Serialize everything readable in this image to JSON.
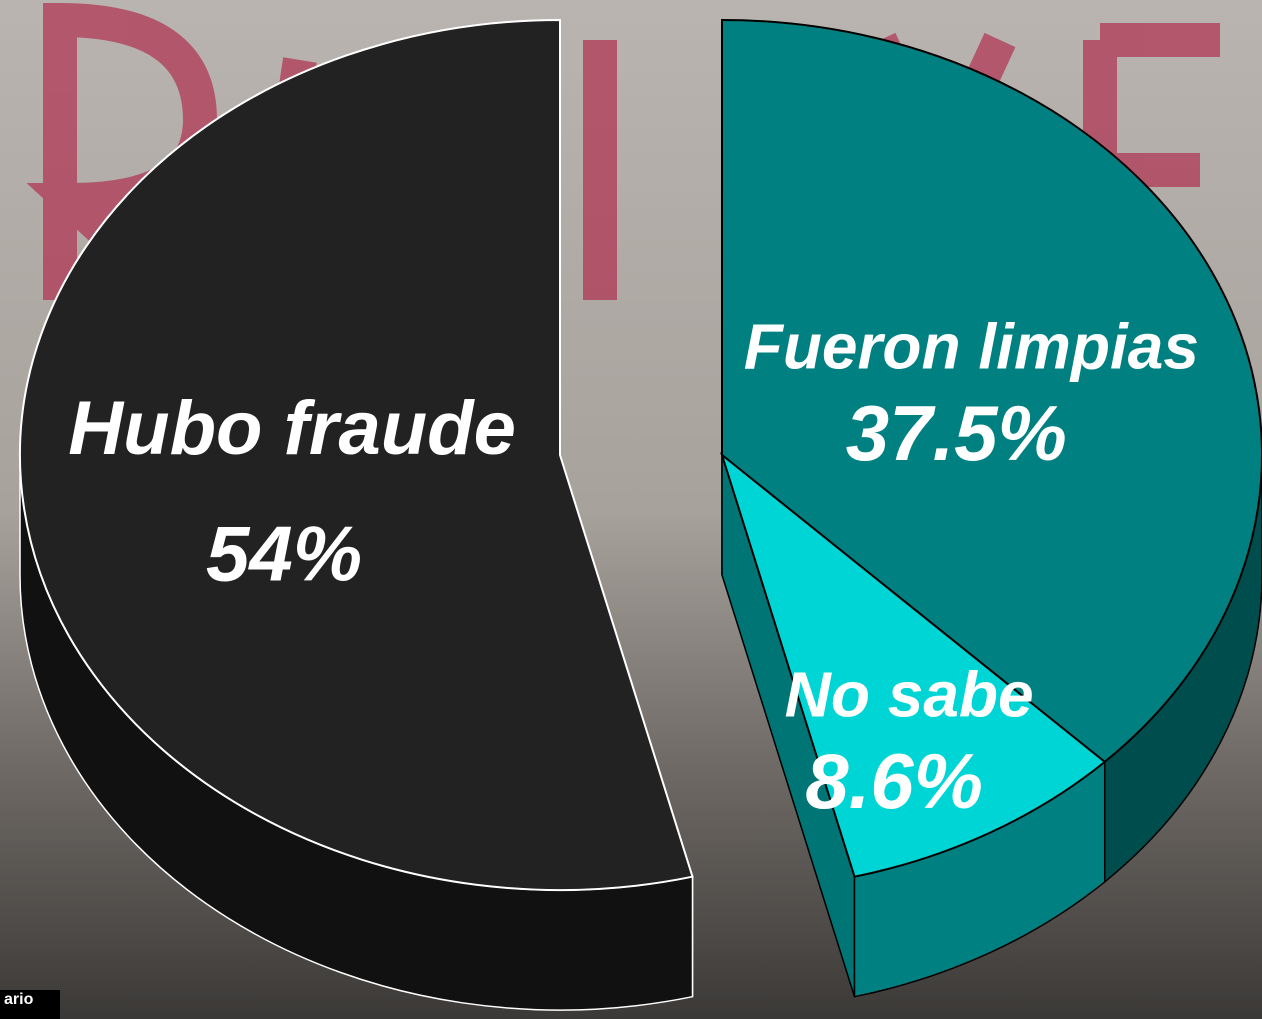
{
  "chart_data": {
    "type": "pie",
    "categories": [
      "Hubo fraude",
      "Fueron limpias",
      "No sabe"
    ],
    "values": [
      54,
      37.5,
      8.6
    ],
    "value_labels": [
      "54%",
      "37.5%",
      "8.6%"
    ],
    "colors": [
      "#222222",
      "#008080",
      "#00d5d5"
    ]
  },
  "watermark": "ario"
}
